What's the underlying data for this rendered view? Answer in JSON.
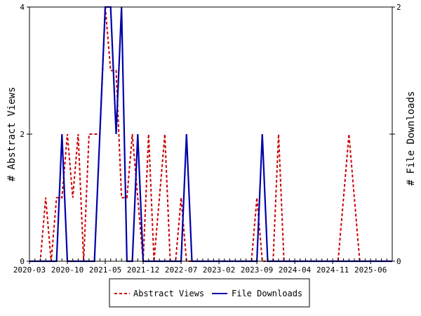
{
  "chart_data": {
    "type": "line",
    "x_tick_labels": [
      "2020-03",
      "2020-10",
      "2021-05",
      "2021-12",
      "2022-07",
      "2023-02",
      "2023-09",
      "2024-04",
      "2024-11",
      "2025-06"
    ],
    "x_range_months": [
      "2020-03",
      "2025-10"
    ],
    "y_left_label": "# Abstract Views",
    "y_right_label": "# File Downloads",
    "y_left_ticks": [
      "0",
      "2",
      "4"
    ],
    "y_right_ticks": [
      "0",
      "1",
      "2"
    ],
    "y_left_lim": [
      0,
      4
    ],
    "y_right_lim": [
      0,
      2
    ],
    "grid": false,
    "legend_position": "bottom",
    "series": [
      {
        "name": "Abstract Views",
        "axis": "left",
        "color": "#cc0000",
        "dash": "dashed",
        "points": [
          [
            "2020-03",
            0
          ],
          [
            "2020-04",
            0
          ],
          [
            "2020-05",
            0
          ],
          [
            "2020-06",
            1
          ],
          [
            "2020-07",
            0
          ],
          [
            "2020-08",
            1
          ],
          [
            "2020-09",
            1
          ],
          [
            "2020-10",
            2
          ],
          [
            "2020-11",
            1
          ],
          [
            "2020-12",
            2
          ],
          [
            "2021-01",
            0
          ],
          [
            "2021-02",
            2
          ],
          [
            "2021-03",
            2
          ],
          [
            "2021-04",
            2
          ],
          [
            "2021-05",
            4
          ],
          [
            "2021-06",
            3
          ],
          [
            "2021-07",
            3
          ],
          [
            "2021-08",
            1
          ],
          [
            "2021-09",
            1
          ],
          [
            "2021-10",
            2
          ],
          [
            "2021-11",
            1
          ],
          [
            "2021-12",
            0
          ],
          [
            "2022-01",
            2
          ],
          [
            "2022-02",
            0
          ],
          [
            "2022-03",
            1
          ],
          [
            "2022-04",
            2
          ],
          [
            "2022-05",
            0
          ],
          [
            "2022-06",
            0
          ],
          [
            "2022-07",
            1
          ],
          [
            "2022-08",
            0
          ],
          [
            "2022-09",
            0
          ],
          [
            "2022-10",
            0
          ],
          [
            "2022-11",
            0
          ],
          [
            "2022-12",
            0
          ],
          [
            "2023-01",
            0
          ],
          [
            "2023-02",
            0
          ],
          [
            "2023-03",
            0
          ],
          [
            "2023-04",
            0
          ],
          [
            "2023-05",
            0
          ],
          [
            "2023-06",
            0
          ],
          [
            "2023-07",
            0
          ],
          [
            "2023-08",
            0
          ],
          [
            "2023-09",
            1
          ],
          [
            "2023-10",
            0
          ],
          [
            "2023-11",
            0
          ],
          [
            "2023-12",
            0
          ],
          [
            "2024-01",
            2
          ],
          [
            "2024-02",
            0
          ],
          [
            "2024-03",
            0
          ],
          [
            "2024-04",
            0
          ],
          [
            "2024-05",
            0
          ],
          [
            "2024-06",
            0
          ],
          [
            "2024-07",
            0
          ],
          [
            "2024-08",
            0
          ],
          [
            "2024-09",
            0
          ],
          [
            "2024-10",
            0
          ],
          [
            "2024-11",
            0
          ],
          [
            "2024-12",
            0
          ],
          [
            "2025-01",
            1
          ],
          [
            "2025-02",
            2
          ],
          [
            "2025-03",
            1
          ],
          [
            "2025-04",
            0
          ],
          [
            "2025-05",
            0
          ],
          [
            "2025-06",
            0
          ],
          [
            "2025-07",
            0
          ],
          [
            "2025-08",
            0
          ],
          [
            "2025-09",
            0
          ],
          [
            "2025-10",
            0
          ]
        ]
      },
      {
        "name": "File Downloads",
        "axis": "right",
        "color": "#0000aa",
        "dash": "solid",
        "points": [
          [
            "2020-03",
            0
          ],
          [
            "2020-04",
            0
          ],
          [
            "2020-05",
            0
          ],
          [
            "2020-06",
            0
          ],
          [
            "2020-07",
            0
          ],
          [
            "2020-08",
            0
          ],
          [
            "2020-09",
            1
          ],
          [
            "2020-10",
            0
          ],
          [
            "2020-11",
            0
          ],
          [
            "2020-12",
            0
          ],
          [
            "2021-01",
            0
          ],
          [
            "2021-02",
            0
          ],
          [
            "2021-03",
            0
          ],
          [
            "2021-04",
            1
          ],
          [
            "2021-05",
            2
          ],
          [
            "2021-06",
            2
          ],
          [
            "2021-07",
            1
          ],
          [
            "2021-08",
            2
          ],
          [
            "2021-09",
            0
          ],
          [
            "2021-10",
            0
          ],
          [
            "2021-11",
            1
          ],
          [
            "2021-12",
            0
          ],
          [
            "2022-01",
            0
          ],
          [
            "2022-02",
            0
          ],
          [
            "2022-03",
            0
          ],
          [
            "2022-04",
            0
          ],
          [
            "2022-05",
            0
          ],
          [
            "2022-06",
            0
          ],
          [
            "2022-07",
            0
          ],
          [
            "2022-08",
            1
          ],
          [
            "2022-09",
            0
          ],
          [
            "2022-10",
            0
          ],
          [
            "2022-11",
            0
          ],
          [
            "2022-12",
            0
          ],
          [
            "2023-01",
            0
          ],
          [
            "2023-02",
            0
          ],
          [
            "2023-03",
            0
          ],
          [
            "2023-04",
            0
          ],
          [
            "2023-05",
            0
          ],
          [
            "2023-06",
            0
          ],
          [
            "2023-07",
            0
          ],
          [
            "2023-08",
            0
          ],
          [
            "2023-09",
            0
          ],
          [
            "2023-10",
            1
          ],
          [
            "2023-11",
            0
          ],
          [
            "2023-12",
            0
          ],
          [
            "2024-01",
            0
          ],
          [
            "2024-02",
            0
          ],
          [
            "2024-03",
            0
          ],
          [
            "2024-04",
            0
          ],
          [
            "2024-05",
            0
          ],
          [
            "2024-06",
            0
          ],
          [
            "2024-07",
            0
          ],
          [
            "2024-08",
            0
          ],
          [
            "2024-09",
            0
          ],
          [
            "2024-10",
            0
          ],
          [
            "2024-11",
            0
          ],
          [
            "2024-12",
            0
          ],
          [
            "2025-01",
            0
          ],
          [
            "2025-02",
            0
          ],
          [
            "2025-03",
            0
          ],
          [
            "2025-04",
            0
          ],
          [
            "2025-05",
            0
          ],
          [
            "2025-06",
            0
          ],
          [
            "2025-07",
            0
          ],
          [
            "2025-08",
            0
          ],
          [
            "2025-09",
            0
          ],
          [
            "2025-10",
            0
          ]
        ]
      }
    ]
  }
}
